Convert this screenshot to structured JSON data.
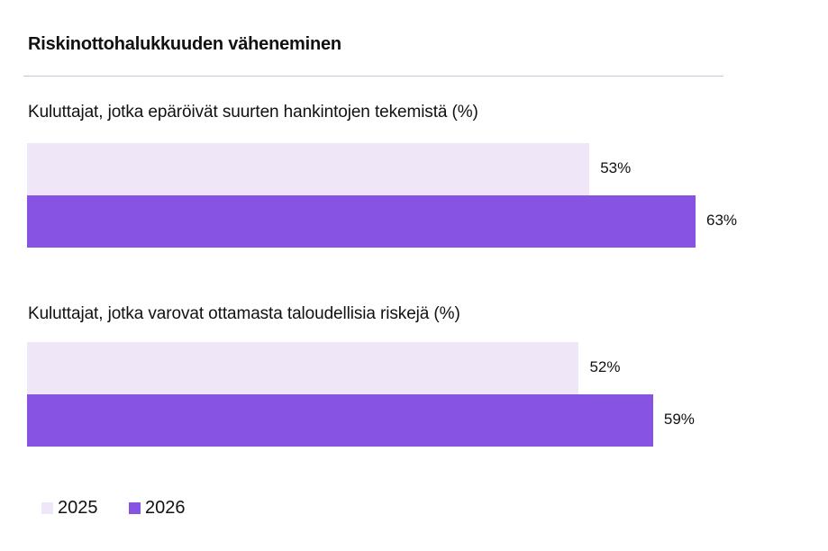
{
  "colors": {
    "series_2025": "#efe7f7",
    "series_2026": "#8753e3",
    "divider": "#c9c3d9"
  },
  "chart_data": {
    "type": "bar",
    "orientation": "horizontal",
    "title": "Riskinottohalukkuuden väheneminen",
    "categories": [
      "Kuluttajat, jotka epäröivät suurten hankintojen tekemistä (%)",
      "Kuluttajat, jotka varovat ottamasta taloudellisia riskejä (%)"
    ],
    "series": [
      {
        "name": "2025",
        "values": [
          53,
          52
        ],
        "labels": [
          "53%",
          "52%"
        ]
      },
      {
        "name": "2026",
        "values": [
          63,
          59
        ],
        "labels": [
          "63%",
          "59%"
        ]
      }
    ],
    "legend": "bottom-left",
    "grid": false
  }
}
